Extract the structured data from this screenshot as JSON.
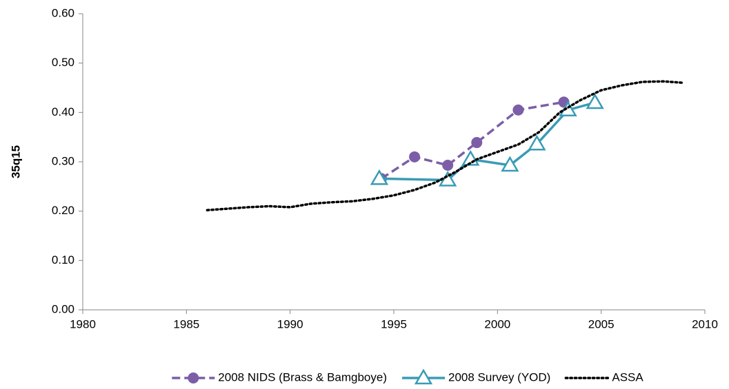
{
  "chart_data": {
    "type": "line",
    "y_label": "35q15",
    "xlim": [
      1980,
      2010
    ],
    "xticks": [
      1980,
      1985,
      1990,
      1995,
      2000,
      2005,
      2010
    ],
    "ylim": [
      0,
      0.6
    ],
    "yticks": [
      {
        "value": 0,
        "label": "0.00"
      },
      {
        "value": 0.1,
        "label": "0.10"
      },
      {
        "value": 0.2,
        "label": "0.20"
      },
      {
        "value": 0.3,
        "label": "0.30"
      },
      {
        "value": 0.4,
        "label": "0.40"
      },
      {
        "value": 0.5,
        "label": "0.50"
      },
      {
        "value": 0.6,
        "label": "0.60"
      }
    ],
    "grid": false,
    "legend": "bottom",
    "series": [
      {
        "name": "2008 NIDS (Brass & Bamgboye)",
        "color": "#7b5ea7",
        "style": "dashed",
        "marker": "circle",
        "x": [
          1994.4,
          1996.0,
          1997.6,
          1999.0,
          2001.0,
          2003.2
        ],
        "values": [
          0.266,
          0.31,
          0.293,
          0.339,
          0.405,
          0.421
        ]
      },
      {
        "name": "2008 Survey (YOD)",
        "color": "#3a9bb5",
        "style": "solid",
        "marker": "triangle",
        "x": [
          1994.3,
          1997.6,
          1998.7,
          2000.6,
          2001.9,
          2003.4,
          2004.7
        ],
        "values": [
          0.266,
          0.263,
          0.305,
          0.293,
          0.336,
          0.405,
          0.42
        ]
      },
      {
        "name": "ASSA",
        "color": "#000000",
        "style": "dotted",
        "marker": "none",
        "x": [
          1986,
          1987,
          1988,
          1989,
          1990,
          1991,
          1992,
          1993,
          1994,
          1995,
          1996,
          1997,
          1998,
          1999,
          2000,
          2001,
          2002,
          2003,
          2004,
          2005,
          2006,
          2007,
          2008,
          2009
        ],
        "values": [
          0.202,
          0.205,
          0.208,
          0.21,
          0.208,
          0.215,
          0.218,
          0.22,
          0.225,
          0.232,
          0.243,
          0.258,
          0.28,
          0.305,
          0.32,
          0.335,
          0.36,
          0.4,
          0.425,
          0.445,
          0.455,
          0.462,
          0.463,
          0.46
        ]
      }
    ]
  }
}
